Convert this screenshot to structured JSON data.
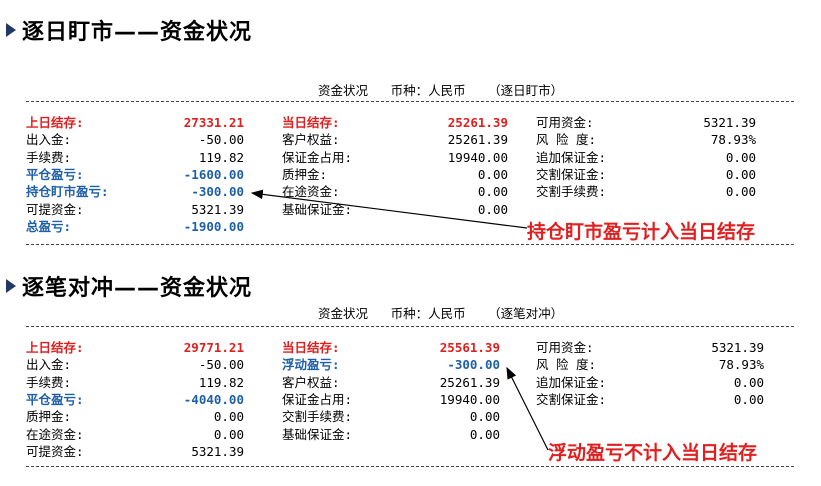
{
  "section1": {
    "title": "逐日盯市——资金状况",
    "header": "资金状况   币种：人民币   （逐日盯市）",
    "col1": [
      {
        "label": "上日结存:",
        "value": "27331.21",
        "style": "red"
      },
      {
        "label": "出入金:",
        "value": "-50.00",
        "style": ""
      },
      {
        "label": "手续费:",
        "value": "119.82",
        "style": ""
      },
      {
        "label": "平仓盈亏:",
        "value": "-1600.00",
        "style": "blue"
      },
      {
        "label": "持仓盯市盈亏:",
        "value": "-300.00",
        "style": "blue"
      },
      {
        "label": "可提资金:",
        "value": "5321.39",
        "style": ""
      },
      {
        "label": "总盈亏:",
        "value": "-1900.00",
        "style": "blue"
      }
    ],
    "col2": [
      {
        "label": "当日结存:",
        "value": "25261.39",
        "style": "red"
      },
      {
        "label": "客户权益:",
        "value": "25261.39",
        "style": ""
      },
      {
        "label": "保证金占用:",
        "value": "19940.00",
        "style": ""
      },
      {
        "label": "质押金:",
        "value": "0.00",
        "style": ""
      },
      {
        "label": "在途资金:",
        "value": "0.00",
        "style": ""
      },
      {
        "label": "基础保证金:",
        "value": "0.00",
        "style": ""
      }
    ],
    "col3": [
      {
        "label": "可用资金:",
        "value": "5321.39",
        "style": ""
      },
      {
        "label": "风 险 度:",
        "value": "78.93%",
        "style": ""
      },
      {
        "label": "追加保证金:",
        "value": "0.00",
        "style": ""
      },
      {
        "label": "交割保证金:",
        "value": "0.00",
        "style": ""
      },
      {
        "label": "交割手续费:",
        "value": "0.00",
        "style": ""
      }
    ],
    "callout": "持仓盯市盈亏计入当日结存"
  },
  "section2": {
    "title": "逐笔对冲——资金状况",
    "header": "资金状况   币种：人民币   （逐笔对冲）",
    "col1": [
      {
        "label": "上日结存:",
        "value": "29771.21",
        "style": "red"
      },
      {
        "label": "出入金:",
        "value": "-50.00",
        "style": ""
      },
      {
        "label": "手续费:",
        "value": "119.82",
        "style": ""
      },
      {
        "label": "平仓盈亏:",
        "value": "-4040.00",
        "style": "blue"
      },
      {
        "label": "质押金:",
        "value": "0.00",
        "style": ""
      },
      {
        "label": "在途资金:",
        "value": "0.00",
        "style": ""
      },
      {
        "label": "可提资金:",
        "value": "5321.39",
        "style": ""
      }
    ],
    "col2": [
      {
        "label": "当日结存:",
        "value": "25561.39",
        "style": "red"
      },
      {
        "label": "浮动盈亏:",
        "value": "-300.00",
        "style": "blue"
      },
      {
        "label": "客户权益:",
        "value": "25261.39",
        "style": ""
      },
      {
        "label": "保证金占用:",
        "value": "19940.00",
        "style": ""
      },
      {
        "label": "交割手续费:",
        "value": "0.00",
        "style": ""
      },
      {
        "label": "基础保证金:",
        "value": "0.00",
        "style": ""
      }
    ],
    "col3": [
      {
        "label": "可用资金:",
        "value": "5321.39",
        "style": ""
      },
      {
        "label": "风 险 度:",
        "value": "78.93%",
        "style": ""
      },
      {
        "label": "追加保证金:",
        "value": "0.00",
        "style": ""
      },
      {
        "label": "交割保证金:",
        "value": "0.00",
        "style": ""
      }
    ],
    "callout": "浮动盈亏不计入当日结存"
  },
  "colors": {
    "red": "#e02020",
    "blue": "#1f5fa8"
  }
}
